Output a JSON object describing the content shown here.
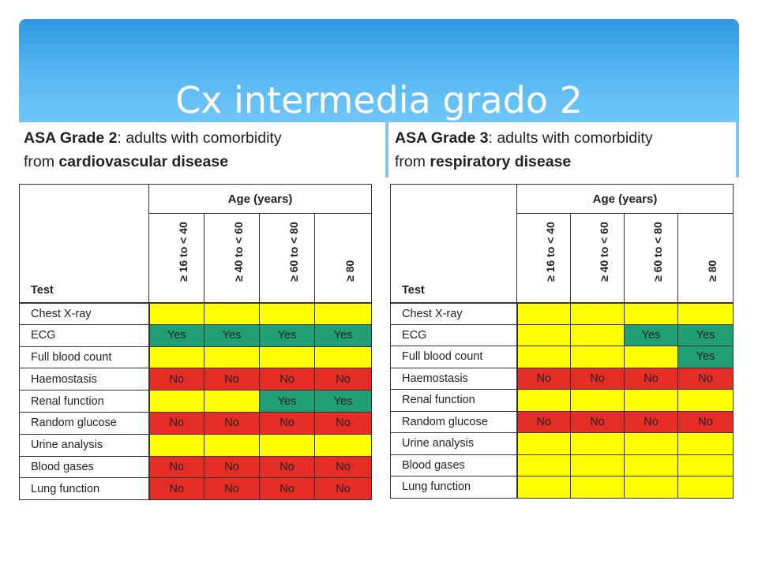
{
  "title": "Cx intermedia grado 2",
  "left": {
    "caption_bold": "ASA Grade 2",
    "caption_text": ": adults with comorbidity",
    "caption_line2_prefix": "from ",
    "caption_line2_bold": "cardiovascular disease",
    "header": {
      "test": "Test",
      "age": "Age (years)",
      "bands": [
        "≥ 16 to < 40",
        "≥ 40 to < 60",
        "≥ 60 to < 80",
        "≥ 80"
      ]
    },
    "rows": [
      {
        "test": "Chest X-ray",
        "cells": [
          "",
          "",
          "",
          ""
        ],
        "colors": [
          "Y",
          "Y",
          "Y",
          "Y"
        ]
      },
      {
        "test": "ECG",
        "cells": [
          "Yes",
          "Yes",
          "Yes",
          "Yes"
        ],
        "colors": [
          "G",
          "G",
          "G",
          "G"
        ]
      },
      {
        "test": "Full blood count",
        "cells": [
          "",
          "",
          "",
          ""
        ],
        "colors": [
          "Y",
          "Y",
          "Y",
          "Y"
        ]
      },
      {
        "test": "Haemostasis",
        "cells": [
          "No",
          "No",
          "No",
          "No"
        ],
        "colors": [
          "R",
          "R",
          "R",
          "R"
        ]
      },
      {
        "test": "Renal function",
        "cells": [
          "",
          "",
          "Yes",
          "Yes"
        ],
        "colors": [
          "Y",
          "Y",
          "G",
          "G"
        ]
      },
      {
        "test": "Random glucose",
        "cells": [
          "No",
          "No",
          "No",
          "No"
        ],
        "colors": [
          "R",
          "R",
          "R",
          "R"
        ]
      },
      {
        "test": "Urine analysis",
        "cells": [
          "",
          "",
          "",
          ""
        ],
        "colors": [
          "Y",
          "Y",
          "Y",
          "Y"
        ]
      },
      {
        "test": "Blood gases",
        "cells": [
          "No",
          "No",
          "No",
          "No"
        ],
        "colors": [
          "R",
          "R",
          "R",
          "R"
        ]
      },
      {
        "test": "Lung function",
        "cells": [
          "No",
          "No",
          "No",
          "No"
        ],
        "colors": [
          "R",
          "R",
          "R",
          "R"
        ]
      }
    ]
  },
  "right": {
    "caption_bold": "ASA Grade 3",
    "caption_text": ": adults with comorbidity",
    "caption_line2_prefix": "from ",
    "caption_line2_bold": "respiratory disease",
    "header": {
      "test": "Test",
      "age": "Age (years)",
      "bands": [
        "≥ 16 to < 40",
        "≥ 40 to < 60",
        "≥ 60 to < 80",
        "≥ 80"
      ]
    },
    "rows": [
      {
        "test": "Chest X-ray",
        "cells": [
          "",
          "",
          "",
          ""
        ],
        "colors": [
          "Y",
          "Y",
          "Y",
          "Y"
        ]
      },
      {
        "test": "ECG",
        "cells": [
          "",
          "",
          "Yes",
          "Yes"
        ],
        "colors": [
          "Y",
          "Y",
          "G",
          "G"
        ]
      },
      {
        "test": "Full blood count",
        "cells": [
          "",
          "",
          "",
          "Yes"
        ],
        "colors": [
          "Y",
          "Y",
          "Y",
          "G"
        ]
      },
      {
        "test": "Haemostasis",
        "cells": [
          "No",
          "No",
          "No",
          "No"
        ],
        "colors": [
          "R",
          "R",
          "R",
          "R"
        ]
      },
      {
        "test": "Renal function",
        "cells": [
          "",
          "",
          "",
          ""
        ],
        "colors": [
          "Y",
          "Y",
          "Y",
          "Y"
        ]
      },
      {
        "test": "Random glucose",
        "cells": [
          "No",
          "No",
          "No",
          "No"
        ],
        "colors": [
          "R",
          "R",
          "R",
          "R"
        ]
      },
      {
        "test": "Urine analysis",
        "cells": [
          "",
          "",
          "",
          ""
        ],
        "colors": [
          "Y",
          "Y",
          "Y",
          "Y"
        ]
      },
      {
        "test": "Blood gases",
        "cells": [
          "",
          "",
          "",
          ""
        ],
        "colors": [
          "Y",
          "Y",
          "Y",
          "Y"
        ]
      },
      {
        "test": "Lung function",
        "cells": [
          "",
          "",
          "",
          ""
        ],
        "colors": [
          "Y",
          "Y",
          "Y",
          "Y"
        ]
      }
    ]
  },
  "colors": {
    "Y": "#ffff00",
    "G": "#1f9f73",
    "R": "#e52d26"
  }
}
